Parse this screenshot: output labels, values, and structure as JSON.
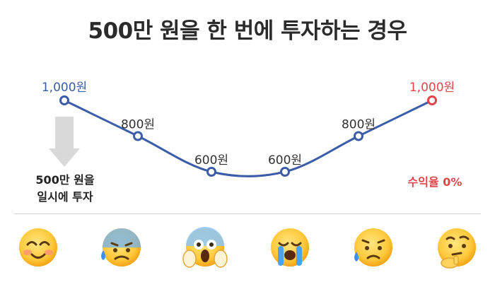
{
  "title": "500만 원을 한 번에 투자하는 경우",
  "chart_data": {
    "type": "line",
    "title": "500만 원을 한 번에 투자하는 경우",
    "x": [
      1,
      2,
      3,
      4,
      5,
      6
    ],
    "series": [
      {
        "values": [
          1000,
          800,
          600,
          600,
          800,
          1000
        ]
      }
    ],
    "data_labels": [
      "1,000원",
      "800원",
      "600원",
      "600원",
      "800원",
      "1,000원"
    ],
    "ylim": [
      600,
      1000
    ],
    "grid": false,
    "colors": {
      "line": "#3b5ca8",
      "end_point": "#e0454b",
      "arrow": "#d9d9d9"
    }
  },
  "invest_note": {
    "line1": "500만 원을",
    "line2": "일시에 투자"
  },
  "return_note": "수익율 0%",
  "moods": [
    "smiling-face",
    "anxious-sweat-face",
    "screaming-fear-face",
    "loudly-crying-face",
    "sad-relieved-face",
    "thinking-face"
  ]
}
